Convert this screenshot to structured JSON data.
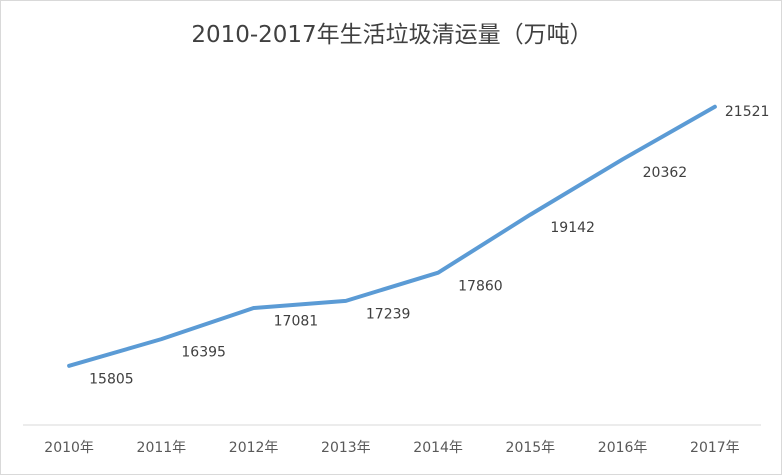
{
  "chart_data": {
    "type": "line",
    "title": "2010-2017年生活垃圾清运量（万吨）",
    "xlabel": "",
    "ylabel": "",
    "categories": [
      "2010年",
      "2011年",
      "2012年",
      "2013年",
      "2014年",
      "2015年",
      "2016年",
      "2017年"
    ],
    "series": [
      {
        "values": [
          15805,
          16395,
          17081,
          17239,
          17860,
          19142,
          20362,
          21521
        ],
        "labels": [
          "15805",
          "16395",
          "17081",
          "17239",
          "17860",
          "19142",
          "20362",
          "21521"
        ],
        "color": "#5b9bd5"
      }
    ],
    "ylim": [
      14500,
      22200
    ],
    "grid": false,
    "legend": "none",
    "data_labels": true
  }
}
